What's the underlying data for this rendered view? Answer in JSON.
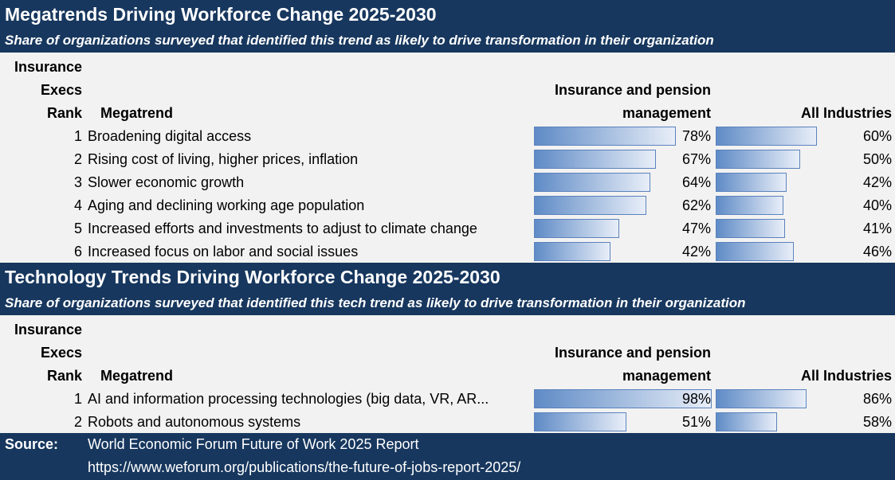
{
  "sections": [
    {
      "title": "Megatrends Driving Workforce Change 2025-2030",
      "subtitle": "Share of organizations surveyed that identified this trend as likely to drive transformation in their organization",
      "headers": {
        "rank1": "Insurance",
        "rank2": "Execs",
        "rank3": "Rank",
        "trend": "Megatrend",
        "ins1": "Insurance and pension",
        "ins2": "management",
        "all": "All Industries"
      },
      "rows": [
        {
          "rank": "1",
          "name": "Broadening digital access",
          "ins": 78,
          "ins_label": "78%",
          "all": 60,
          "all_label": "60%"
        },
        {
          "rank": "2",
          "name": "Rising cost of living, higher prices, inflation",
          "ins": 67,
          "ins_label": "67%",
          "all": 50,
          "all_label": "50%"
        },
        {
          "rank": "3",
          "name": "Slower economic growth",
          "ins": 64,
          "ins_label": "64%",
          "all": 42,
          "all_label": "42%"
        },
        {
          "rank": "4",
          "name": "Aging and declining working age population",
          "ins": 62,
          "ins_label": "62%",
          "all": 40,
          "all_label": "40%"
        },
        {
          "rank": "5",
          "name": "Increased efforts and investments to adjust to climate change",
          "ins": 47,
          "ins_label": "47%",
          "all": 41,
          "all_label": "41%"
        },
        {
          "rank": "6",
          "name": "Increased focus on labor and social issues",
          "ins": 42,
          "ins_label": "42%",
          "all": 46,
          "all_label": "46%"
        }
      ]
    },
    {
      "title": "Technology Trends Driving Workforce Change 2025-2030",
      "subtitle": "Share of organizations surveyed that identified this tech trend as likely to drive transformation in their organization",
      "headers": {
        "rank1": "Insurance",
        "rank2": "Execs",
        "rank3": "Rank",
        "trend": "Megatrend",
        "ins1": "Insurance and pension",
        "ins2": "management",
        "all": "All Industries"
      },
      "rows": [
        {
          "rank": "1",
          "name": "AI and information processing technologies (big data, VR, AR...",
          "ins": 98,
          "ins_label": "98%",
          "all": 86,
          "all_label": "86%"
        },
        {
          "rank": "2",
          "name": "Robots and autonomous systems",
          "ins": 51,
          "ins_label": "51%",
          "all": 58,
          "all_label": "58%"
        }
      ]
    }
  ],
  "source": {
    "label": "Source:",
    "line1": "World Economic Forum Future of Work 2025 Report",
    "line2": "https://www.weforum.org/publications/the-future-of-jobs-report-2025/"
  },
  "colors": {
    "navy": "#17375e",
    "bar": "#5f8bc6"
  }
}
